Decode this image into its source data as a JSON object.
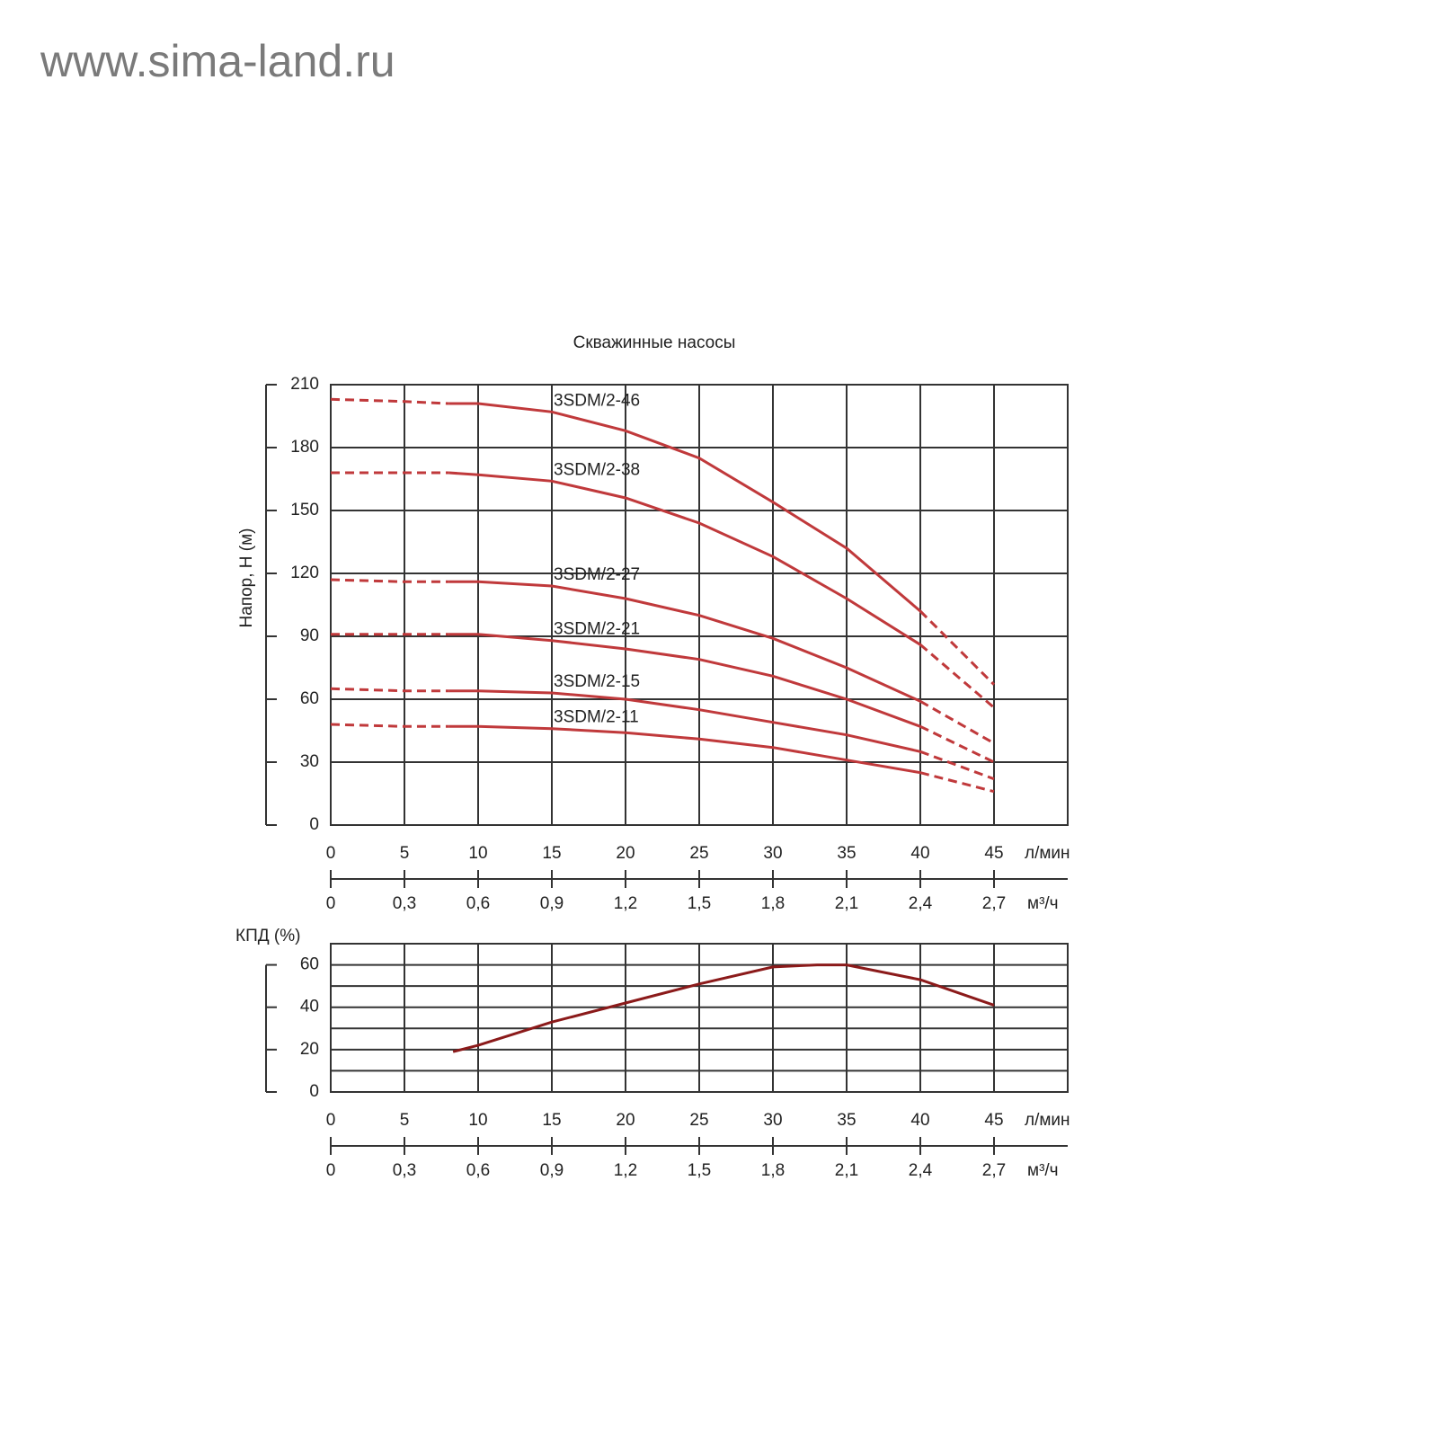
{
  "watermark": "www.sima-land.ru",
  "chart_data": [
    {
      "type": "line",
      "title": "Скважинные насосы",
      "ylabel": "Напор, Н (м)",
      "xlabel": "л/мин",
      "x2label": "м³/ч",
      "x": [
        0,
        5,
        8,
        10,
        15,
        20,
        25,
        30,
        35,
        40,
        45
      ],
      "dash_before": 8,
      "dash_after": 40,
      "series": [
        {
          "name": "3SDM/2-46",
          "color": "#c0393b",
          "values": [
            203,
            202,
            201,
            201,
            197,
            188,
            175,
            154,
            132,
            102,
            67
          ]
        },
        {
          "name": "3SDM/2-38",
          "color": "#c0393b",
          "values": [
            168,
            168,
            168,
            167,
            164,
            156,
            144,
            128,
            108,
            86,
            56
          ]
        },
        {
          "name": "3SDM/2-27",
          "color": "#c0393b",
          "values": [
            117,
            116,
            116,
            116,
            114,
            108,
            100,
            89,
            75,
            59,
            39
          ]
        },
        {
          "name": "3SDM/2-21",
          "color": "#c0393b",
          "values": [
            91,
            91,
            91,
            91,
            88,
            84,
            79,
            71,
            60,
            47,
            30
          ]
        },
        {
          "name": "3SDM/2-15",
          "color": "#c0393b",
          "values": [
            65,
            64,
            64,
            64,
            63,
            60,
            55,
            49,
            43,
            35,
            22
          ]
        },
        {
          "name": "3SDM/2-11",
          "color": "#c0393b",
          "values": [
            48,
            47,
            47,
            47,
            46,
            44,
            41,
            37,
            31,
            25,
            16
          ]
        }
      ],
      "xlim": [
        0,
        50
      ],
      "xticks": [
        0,
        5,
        10,
        15,
        20,
        25,
        30,
        35,
        40,
        45
      ],
      "x2lim": [
        0,
        3
      ],
      "x2ticks": [
        0,
        {
          "value": 0.3,
          "label": "0,3"
        },
        {
          "value": 0.6,
          "label": "0,6"
        },
        {
          "value": 0.9,
          "label": "0,9"
        },
        {
          "value": 1.2,
          "label": "1,2"
        },
        {
          "value": 1.5,
          "label": "1,5"
        },
        {
          "value": 1.8,
          "label": "1,8"
        },
        {
          "value": 2.1,
          "label": "2,1"
        },
        {
          "value": 2.4,
          "label": "2,4"
        },
        {
          "value": 2.7,
          "label": "2,7"
        }
      ],
      "ylim": [
        0,
        210
      ],
      "yticks": [
        0,
        30,
        60,
        90,
        120,
        150,
        180,
        210
      ],
      "grid": true
    },
    {
      "type": "line",
      "ylabel": "КПД  (%)",
      "xlabel": "л/мин",
      "x2label": "м³/ч",
      "x": [
        8.3,
        10,
        15,
        20,
        25,
        30,
        33,
        35,
        40,
        45
      ],
      "series": [
        {
          "color": "#8b1a1a",
          "values": [
            19,
            22,
            33,
            42,
            51,
            59,
            60,
            60,
            53,
            41
          ]
        }
      ],
      "xlim": [
        0,
        50
      ],
      "xticks": [
        0,
        5,
        10,
        15,
        20,
        25,
        30,
        35,
        40,
        45
      ],
      "x2lim": [
        0,
        3
      ],
      "x2ticks": [
        0,
        {
          "value": 0.3,
          "label": "0,3"
        },
        {
          "value": 0.6,
          "label": "0,6"
        },
        {
          "value": 0.9,
          "label": "0,9"
        },
        {
          "value": 1.2,
          "label": "1,2"
        },
        {
          "value": 1.5,
          "label": "1,5"
        },
        {
          "value": 1.8,
          "label": "1,8"
        },
        {
          "value": 2.1,
          "label": "2,1"
        },
        {
          "value": 2.4,
          "label": "2,4"
        },
        {
          "value": 2.7,
          "label": "2,7"
        }
      ],
      "ylim": [
        0,
        70
      ],
      "yticks": [
        0,
        20,
        40,
        60
      ],
      "minor_yticks": [
        10,
        30,
        50
      ],
      "grid": true
    }
  ]
}
